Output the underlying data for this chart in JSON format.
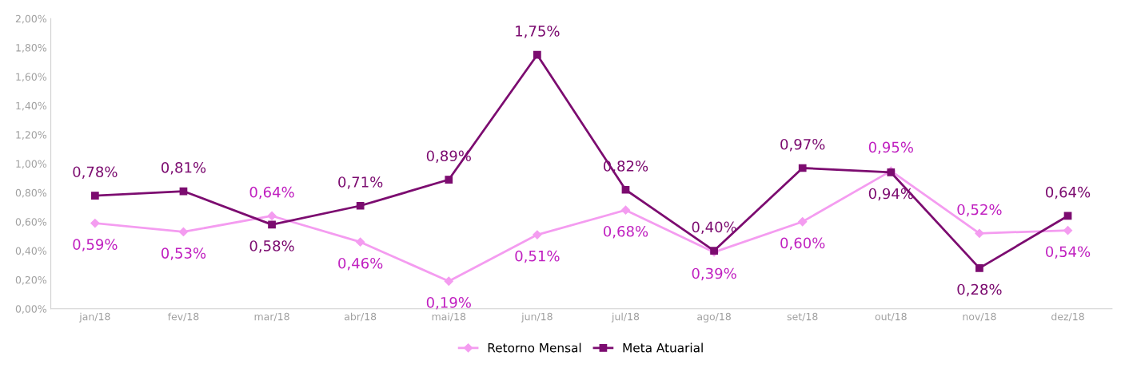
{
  "chart_data": {
    "type": "line",
    "categories": [
      "jan/18",
      "fev/18",
      "mar/18",
      "abr/18",
      "mai/18",
      "jun/18",
      "jul/18",
      "ago/18",
      "set/18",
      "out/18",
      "nov/18",
      "dez/18"
    ],
    "series": [
      {
        "name": "Retorno Mensal",
        "color": "#f49cf0",
        "marker": "diamond",
        "values": [
          0.59,
          0.53,
          0.64,
          0.46,
          0.19,
          0.51,
          0.68,
          0.39,
          0.6,
          0.95,
          0.52,
          0.54
        ],
        "value_labels": [
          "0,59%",
          "0,53%",
          "0,64%",
          "0,46%",
          "0,19%",
          "0,51%",
          "0,68%",
          "0,39%",
          "0,60%",
          "0,95%",
          "0,52%",
          "0,54%"
        ]
      },
      {
        "name": "Meta Atuarial",
        "color": "#7c0c70",
        "marker": "square",
        "values": [
          0.78,
          0.81,
          0.58,
          0.71,
          0.89,
          1.75,
          0.82,
          0.4,
          0.97,
          0.94,
          0.28,
          0.64
        ],
        "value_labels": [
          "0,78%",
          "0,81%",
          "0,58%",
          "0,71%",
          "0,89%",
          "1,75%",
          "0,82%",
          "0,40%",
          "0,97%",
          "0,94%",
          "0,28%",
          "0,64%"
        ]
      }
    ],
    "ylim": [
      0,
      2.0
    ],
    "yticks": [
      {
        "value": 0,
        "label": "0,00%"
      },
      {
        "value": 0.2,
        "label": "0,20%"
      },
      {
        "value": 0.4,
        "label": "0,40%"
      },
      {
        "value": 0.6,
        "label": "0,60%"
      },
      {
        "value": 0.8,
        "label": "0,80%"
      },
      {
        "value": 1.0,
        "label": "1,00%"
      },
      {
        "value": 1.2,
        "label": "1,20%"
      },
      {
        "value": 1.4,
        "label": "1,40%"
      },
      {
        "value": 1.6,
        "label": "1,60%"
      },
      {
        "value": 1.8,
        "label": "1,80%"
      },
      {
        "value": 2.0,
        "label": "2,00%"
      }
    ],
    "legend": "bottom",
    "grid": false
  }
}
